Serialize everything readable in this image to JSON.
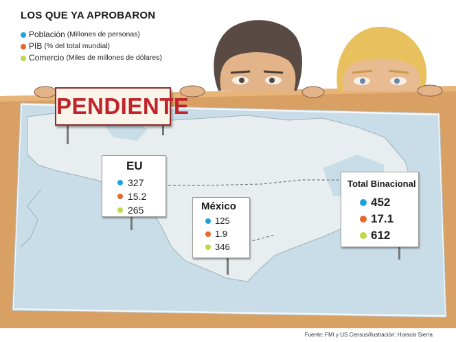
{
  "title": "LOS QUE YA APROBARON",
  "legend": [
    {
      "label": "Población",
      "detail": "(Millones de personas)",
      "color": "#1aa3df"
    },
    {
      "label": "PIB",
      "detail": "(% del total mundial)",
      "color": "#e8672a"
    },
    {
      "label": "Comercio",
      "detail": "(Miles de millones de dólares)",
      "color": "#c3d64b"
    }
  ],
  "sign_pending": "PENDIENTE",
  "cards": {
    "eu": {
      "name": "EU",
      "poblacion": "327",
      "pib": "15.2",
      "comercio": "265"
    },
    "mexico": {
      "name": "México",
      "poblacion": "125",
      "pib": "1.9",
      "comercio": "346"
    },
    "total": {
      "name": "Total Binacional",
      "poblacion": "452",
      "pib": "17.1",
      "comercio": "612"
    }
  },
  "footer": "Fuente: FMI y US Census/Ilustración: Horacio Sierra"
}
